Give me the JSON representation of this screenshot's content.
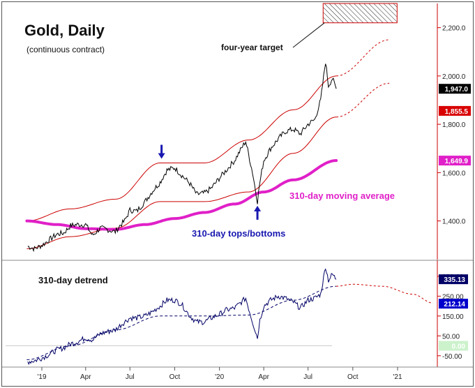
{
  "chart_data": {
    "type": "line",
    "title": "Gold, Daily",
    "subtitle": "(continuous contract)",
    "x_tick_labels": [
      "'19",
      "Apr",
      "Jul",
      "Oct",
      "'20",
      "Apr",
      "Jul",
      "Oct",
      "'21"
    ],
    "price_panel": {
      "ylim": [
        1240,
        2300
      ],
      "y_ticks": [
        1400,
        1600,
        1800,
        2000,
        2200
      ],
      "y_tick_labels": [
        "1,400.0",
        "1,600.0",
        "1,800.0",
        "2,000.0",
        "2,200.0"
      ],
      "series": [
        {
          "name": "Gold daily close",
          "color": "#000000",
          "x": [
            "2018-12-03",
            "2018-12-17",
            "2019-01-02",
            "2019-01-15",
            "2019-02-01",
            "2019-02-15",
            "2019-03-01",
            "2019-03-15",
            "2019-04-01",
            "2019-04-15",
            "2019-05-01",
            "2019-05-15",
            "2019-06-01",
            "2019-06-10",
            "2019-06-20",
            "2019-07-01",
            "2019-07-15",
            "2019-08-01",
            "2019-08-15",
            "2019-09-01",
            "2019-09-15",
            "2019-10-01",
            "2019-10-15",
            "2019-11-01",
            "2019-11-15",
            "2019-12-01",
            "2019-12-15",
            "2020-01-02",
            "2020-01-15",
            "2020-02-01",
            "2020-02-15",
            "2020-02-24",
            "2020-03-09",
            "2020-03-19",
            "2020-03-24",
            "2020-04-01",
            "2020-04-15",
            "2020-05-01",
            "2020-05-15",
            "2020-06-01",
            "2020-06-15",
            "2020-07-01",
            "2020-07-15",
            "2020-07-27",
            "2020-08-06",
            "2020-08-12",
            "2020-08-20",
            "2020-08-28"
          ],
          "values": [
            1295,
            1285,
            1300,
            1320,
            1345,
            1350,
            1380,
            1385,
            1385,
            1340,
            1370,
            1365,
            1355,
            1380,
            1400,
            1445,
            1440,
            1480,
            1520,
            1560,
            1610,
            1620,
            1590,
            1555,
            1510,
            1515,
            1535,
            1580,
            1610,
            1650,
            1700,
            1730,
            1600,
            1480,
            1560,
            1650,
            1700,
            1740,
            1770,
            1780,
            1760,
            1800,
            1820,
            1900,
            2060,
            1960,
            1990,
            1947
          ]
        },
        {
          "name": "310-day moving average",
          "color": "#e020c8",
          "x": [
            "2018-12-01",
            "2019-02-01",
            "2019-04-01",
            "2019-06-01",
            "2019-08-01",
            "2019-10-01",
            "2019-12-01",
            "2020-02-01",
            "2020-04-01",
            "2020-06-01",
            "2020-08-28"
          ],
          "values": [
            1400,
            1385,
            1368,
            1365,
            1385,
            1410,
            1435,
            1470,
            1520,
            1570,
            1650
          ]
        },
        {
          "name": "Upper channel",
          "color": "#cc0000",
          "x": [
            "2018-12-01",
            "2019-03-01",
            "2019-06-01",
            "2019-09-01",
            "2019-12-01",
            "2020-03-01",
            "2020-06-01",
            "2020-08-28",
            "2020-12-15"
          ],
          "values": [
            1400,
            1450,
            1490,
            1640,
            1640,
            1735,
            1860,
            2000,
            2150
          ]
        },
        {
          "name": "Lower channel",
          "color": "#cc0000",
          "x": [
            "2018-12-01",
            "2019-03-01",
            "2019-06-01",
            "2019-09-01",
            "2019-12-01",
            "2020-03-01",
            "2020-06-01",
            "2020-08-28",
            "2020-12-15"
          ],
          "values": [
            1285,
            1335,
            1370,
            1480,
            1480,
            1520,
            1680,
            1830,
            1970
          ]
        }
      ],
      "value_labels": [
        {
          "label": "1,947.0",
          "value": 1947,
          "bg": "#000000",
          "color": "#ffffff"
        },
        {
          "label": "1,855.5",
          "value": 1855.5,
          "bg": "#d80000",
          "color": "#ffffff"
        },
        {
          "label": "1,649.9",
          "value": 1649.9,
          "bg": "#e020c8",
          "color": "#ffffff"
        }
      ],
      "target_box": {
        "x_start": "2020-08-01",
        "x_end": "2020-12-31",
        "low": 2220,
        "high": 2300
      },
      "annotations": [
        {
          "text": "four-year target",
          "color": "#111111"
        },
        {
          "text": "310-day moving average",
          "color": "#e020c8"
        },
        {
          "text": "310-day tops/bottoms",
          "color": "#1818b0"
        }
      ],
      "top_bottom_arrows": [
        {
          "x": "2019-09-04",
          "direction": "down",
          "value": 1640
        },
        {
          "x": "2020-03-19",
          "direction": "up",
          "value": 1480
        }
      ]
    },
    "detrend_panel": {
      "title": "310-day detrend",
      "ylim": [
        -100,
        420
      ],
      "y_ticks": [
        -50,
        50,
        150,
        250,
        350
      ],
      "y_tick_labels": [
        "-50.00",
        "50.00",
        "150.00",
        "250.00",
        "350.00"
      ],
      "zero_line": 0,
      "series": [
        {
          "name": "310-day detrend",
          "color": "#000066",
          "x": [
            "2018-12-03",
            "2018-12-17",
            "2019-01-02",
            "2019-01-15",
            "2019-02-01",
            "2019-02-15",
            "2019-03-01",
            "2019-03-15",
            "2019-04-01",
            "2019-04-15",
            "2019-05-01",
            "2019-05-15",
            "2019-06-01",
            "2019-06-10",
            "2019-06-20",
            "2019-07-01",
            "2019-07-15",
            "2019-08-01",
            "2019-08-15",
            "2019-09-01",
            "2019-09-15",
            "2019-10-01",
            "2019-10-15",
            "2019-11-01",
            "2019-11-15",
            "2019-12-01",
            "2019-12-15",
            "2020-01-02",
            "2020-01-15",
            "2020-02-01",
            "2020-02-15",
            "2020-02-24",
            "2020-03-09",
            "2020-03-19",
            "2020-03-24",
            "2020-04-01",
            "2020-04-15",
            "2020-05-01",
            "2020-05-15",
            "2020-06-01",
            "2020-06-15",
            "2020-07-01",
            "2020-07-15",
            "2020-07-27",
            "2020-08-06",
            "2020-08-12",
            "2020-08-20",
            "2020-08-28"
          ],
          "values": [
            -80,
            -75,
            -60,
            -45,
            -20,
            -10,
            10,
            20,
            40,
            30,
            60,
            70,
            80,
            100,
            120,
            140,
            140,
            150,
            170,
            200,
            230,
            230,
            210,
            150,
            120,
            120,
            140,
            160,
            180,
            190,
            220,
            240,
            120,
            40,
            130,
            200,
            230,
            250,
            240,
            220,
            190,
            230,
            240,
            260,
            400,
            330,
            360,
            335.13
          ]
        },
        {
          "name": "Detrend projection",
          "color": "#cc0000",
          "x": [
            "2018-12-01",
            "2019-03-01",
            "2019-06-01",
            "2019-09-01",
            "2019-12-01",
            "2020-03-01",
            "2020-06-01",
            "2020-08-28",
            "2020-10-01",
            "2020-12-01",
            "2021-02-01",
            "2021-03-15"
          ],
          "values": [
            -70,
            0,
            80,
            150,
            150,
            155,
            230,
            300,
            310,
            300,
            260,
            215
          ]
        }
      ],
      "value_labels": [
        {
          "label": "335.13",
          "value": 335.13,
          "bg": "#000066",
          "color": "#ffffff"
        },
        {
          "label": "212.14",
          "value": 212.14,
          "bg": "#0000cc",
          "color": "#ffffff"
        },
        {
          "label": "0.00",
          "value": 0,
          "bg": "#ccf2cc",
          "color": "#ffffff"
        }
      ]
    }
  }
}
